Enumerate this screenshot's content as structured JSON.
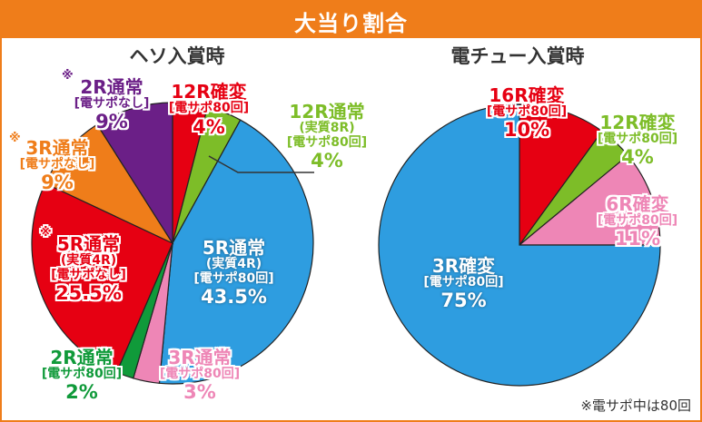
{
  "header": {
    "title": "大当り割合"
  },
  "note": "※電サポ中は80回",
  "colors": {
    "orange": "#ef7d1a",
    "blue": "#2e9de0",
    "purple": "#6b1f87",
    "red": "#e60012",
    "green": "#7dbd28",
    "darkgreen": "#109a3a",
    "pink": "#ee86b6"
  },
  "chart_data": [
    {
      "type": "pie",
      "title": "ヘソ入賞時",
      "slices": [
        {
          "name": "12R確変",
          "sub": "[電サポ80回]",
          "value": 4,
          "label": "4%",
          "color": "#e60012"
        },
        {
          "name": "12R通常",
          "sub": "(実質8R)",
          "sub2": "[電サポ80回]",
          "value": 4,
          "label": "4%",
          "color": "#7dbd28"
        },
        {
          "name": "5R通常",
          "sub": "(実質4R)",
          "sub2": "[電サポ80回]",
          "value": 43.5,
          "label": "43.5%",
          "color": "#2e9de0"
        },
        {
          "name": "3R通常",
          "sub": "[電サポ80回]",
          "value": 3,
          "label": "3%",
          "color": "#ee86b6"
        },
        {
          "name": "2R通常",
          "sub": "[電サポ80回]",
          "value": 2,
          "label": "2%",
          "color": "#109a3a"
        },
        {
          "name": "5R通常",
          "sub": "(実質4R)",
          "sub2": "[電サポなし]",
          "value": 25.5,
          "label": "25.5%",
          "color": "#e60012",
          "mark": "※"
        },
        {
          "name": "3R通常",
          "sub": "[電サポなし]",
          "value": 9,
          "label": "9%",
          "color": "#ef7d1a",
          "mark": "※"
        },
        {
          "name": "2R通常",
          "sub": "[電サポなし]",
          "value": 9,
          "label": "9%",
          "color": "#6b1f87",
          "mark": "※"
        }
      ]
    },
    {
      "type": "pie",
      "title": "電チュー入賞時",
      "slices": [
        {
          "name": "16R確変",
          "sub": "[電サポ80回]",
          "value": 10,
          "label": "10%",
          "color": "#e60012"
        },
        {
          "name": "12R確変",
          "sub": "[電サポ80回]",
          "value": 4,
          "label": "4%",
          "color": "#7dbd28"
        },
        {
          "name": "6R確変",
          "sub": "[電サポ80回]",
          "value": 11,
          "label": "11%",
          "color": "#ee86b6"
        },
        {
          "name": "3R確変",
          "sub": "[電サポ80回]",
          "value": 75,
          "label": "75%",
          "color": "#2e9de0"
        }
      ]
    }
  ]
}
